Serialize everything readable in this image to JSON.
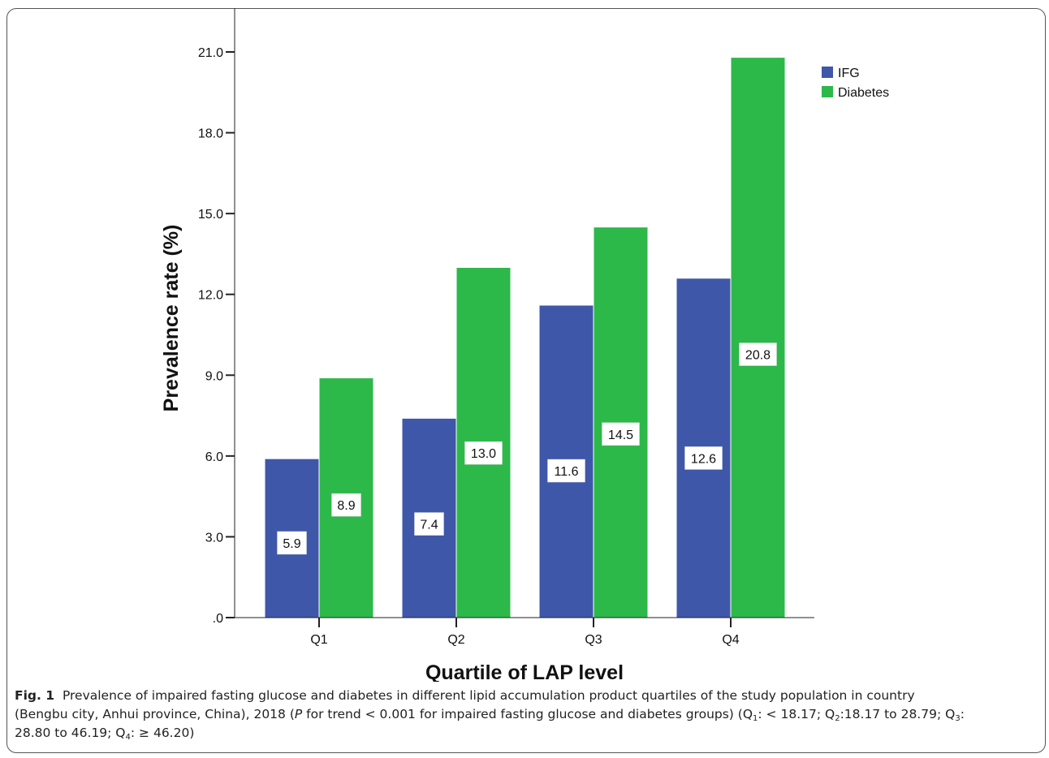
{
  "chart_data": {
    "type": "bar",
    "xlabel": "Quartile of LAP level",
    "ylabel": "Prevalence rate (%)",
    "categories": [
      "Q1",
      "Q2",
      "Q3",
      "Q4"
    ],
    "series": [
      {
        "name": "IFG",
        "color": "#3f57a8",
        "values": [
          5.9,
          7.4,
          11.6,
          12.6
        ],
        "labels": [
          "5.9",
          "7.4",
          "11.6",
          "12.6"
        ]
      },
      {
        "name": "Diabetes",
        "color": "#2db84a",
        "values": [
          8.9,
          13.0,
          14.5,
          20.8
        ],
        "labels": [
          "8.9",
          "13.0",
          "14.5",
          "20.8"
        ]
      }
    ],
    "ylim": [
      0,
      22
    ],
    "yticks": [
      0,
      3,
      6,
      9,
      12,
      15,
      18,
      21
    ],
    "ytick_labels": [
      ".0",
      "3.0",
      "6.0",
      "9.0",
      "12.0",
      "15.0",
      "18.0",
      "21.0"
    ],
    "legend_position": "top-right",
    "grid": false
  },
  "caption": {
    "fig_label": "Fig. 1",
    "line1": "Prevalence of impaired fasting glucose and diabetes in different lipid accumulation product quartiles of the study population in country",
    "line2_pre": "(Bengbu city, Anhui province, China), 2018 (",
    "p_italic": "P",
    "line2_mid": " for trend < 0.001 for impaired fasting glucose and diabetes groups) (Q",
    "q1_sub": "1",
    "q1_text": ": < 18.17; Q",
    "q2_sub": "2",
    "q2_text": ":18.17 to 28.79; Q",
    "q3_sub": "3",
    "q3_text": ":",
    "line3_pre": "28.80 to 46.19; Q",
    "q4_sub": "4",
    "q4_text": ": ≥ 46.20)"
  }
}
